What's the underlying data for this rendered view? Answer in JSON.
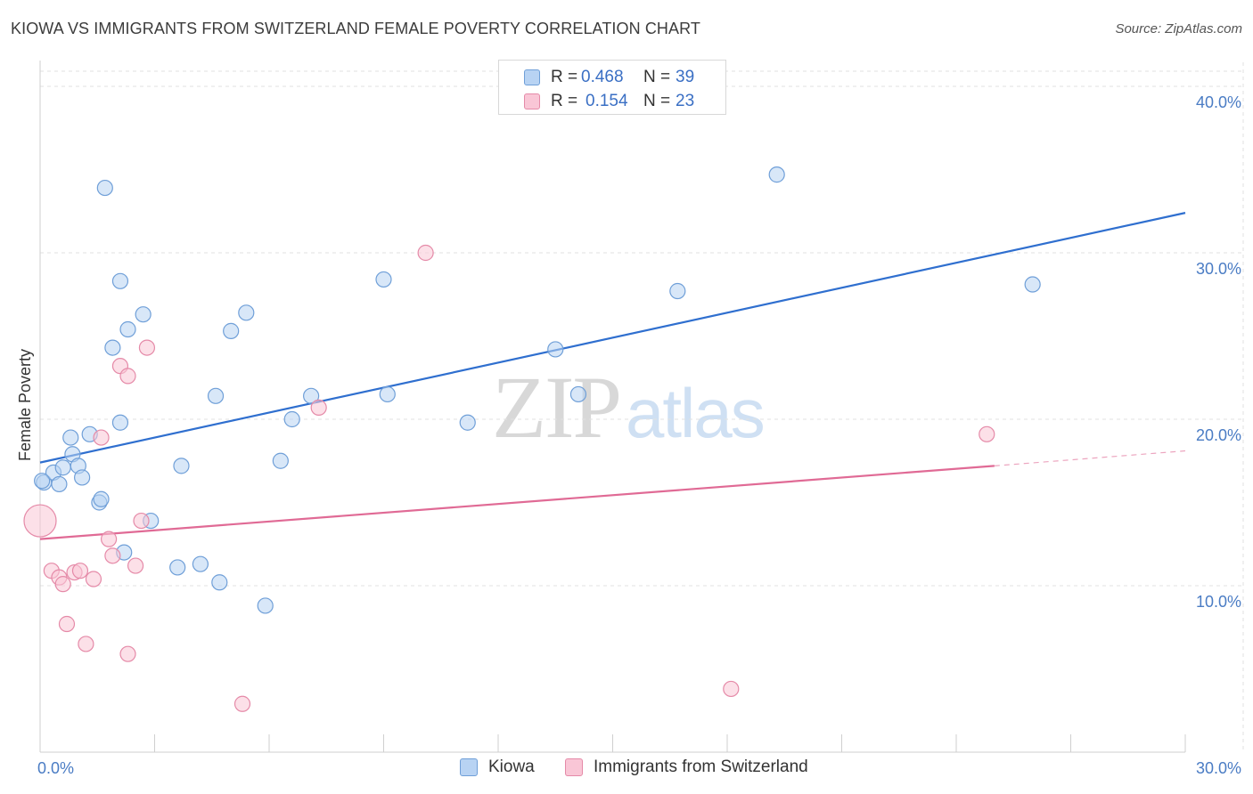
{
  "header": {
    "title": "KIOWA VS IMMIGRANTS FROM SWITZERLAND FEMALE POVERTY CORRELATION CHART",
    "source": "Source: ZipAtlas.com"
  },
  "watermark": {
    "zip": "ZIP",
    "atlas": "atlas"
  },
  "legend": {
    "rows": [
      {
        "r_label": "R =",
        "r_value": "0.468",
        "n_label": "N =",
        "n_value": "39"
      },
      {
        "r_label": "R =",
        "r_value": "0.154",
        "n_label": "N =",
        "n_value": "23"
      }
    ]
  },
  "bottom_legend": {
    "series1": "Kiowa",
    "series2": "Immigrants from Switzerland"
  },
  "colors": {
    "kiowa_fill": "#b8d3f3",
    "kiowa_stroke": "#6f9fd8",
    "kiowa_line": "#2f6fcf",
    "swiss_fill": "#f9c6d6",
    "swiss_stroke": "#e58aa8",
    "swiss_line": "#e06a95",
    "grid": "#e2e2e2",
    "tick_text": "#4a7cc4"
  },
  "chart_data": {
    "type": "scatter",
    "title": "KIOWA VS IMMIGRANTS FROM SWITZERLAND FEMALE POVERTY CORRELATION CHART",
    "ylabel": "Female Poverty",
    "xlabel": "",
    "xlim": [
      0,
      30
    ],
    "ylim": [
      0,
      40
    ],
    "x_tick_labels": [
      {
        "v": 0,
        "label": "0.0%"
      },
      {
        "v": 30,
        "label": "30.0%"
      }
    ],
    "y_tick_labels": [
      {
        "v": 10,
        "label": "10.0%"
      },
      {
        "v": 20,
        "label": "20.0%"
      },
      {
        "v": 30,
        "label": "30.0%"
      },
      {
        "v": 40,
        "label": "40.0%"
      }
    ],
    "grid": true,
    "legend_position": "top-center",
    "series": [
      {
        "name": "Kiowa",
        "r": 0.468,
        "n": 39,
        "trend": {
          "x": [
            0,
            30
          ],
          "y": [
            17.4,
            32.4
          ]
        },
        "points": [
          [
            0.1,
            16.2
          ],
          [
            0.35,
            16.8
          ],
          [
            0.5,
            16.1
          ],
          [
            0.6,
            17.1
          ],
          [
            0.8,
            18.9
          ],
          [
            0.85,
            17.9
          ],
          [
            1.0,
            17.2
          ],
          [
            1.1,
            16.5
          ],
          [
            1.3,
            19.1
          ],
          [
            1.55,
            15.0
          ],
          [
            1.6,
            15.2
          ],
          [
            1.7,
            33.9
          ],
          [
            1.9,
            24.3
          ],
          [
            2.1,
            28.3
          ],
          [
            2.1,
            19.8
          ],
          [
            2.2,
            12.0
          ],
          [
            2.3,
            25.4
          ],
          [
            2.7,
            26.3
          ],
          [
            2.9,
            13.9
          ],
          [
            3.6,
            11.1
          ],
          [
            3.7,
            17.2
          ],
          [
            4.2,
            11.3
          ],
          [
            4.6,
            21.4
          ],
          [
            4.7,
            10.2
          ],
          [
            5.0,
            25.3
          ],
          [
            5.4,
            26.4
          ],
          [
            5.9,
            8.8
          ],
          [
            6.3,
            17.5
          ],
          [
            6.6,
            20.0
          ],
          [
            7.1,
            21.4
          ],
          [
            9.0,
            28.4
          ],
          [
            9.1,
            21.5
          ],
          [
            11.2,
            19.8
          ],
          [
            13.5,
            24.2
          ],
          [
            14.1,
            21.5
          ],
          [
            16.7,
            27.7
          ],
          [
            19.3,
            34.7
          ],
          [
            26.0,
            28.1
          ],
          [
            0.05,
            16.3
          ]
        ]
      },
      {
        "name": "Immigrants from Switzerland",
        "r": 0.154,
        "n": 23,
        "trend": {
          "x": [
            0,
            25
          ],
          "y": [
            12.8,
            17.2
          ]
        },
        "trend_dashed": {
          "x": [
            25,
            30
          ],
          "y": [
            17.2,
            18.1
          ]
        },
        "points": [
          [
            0.0,
            13.9
          ],
          [
            0.3,
            10.9
          ],
          [
            0.5,
            10.5
          ],
          [
            0.6,
            10.1
          ],
          [
            0.7,
            7.7
          ],
          [
            0.9,
            10.8
          ],
          [
            1.05,
            10.9
          ],
          [
            1.2,
            6.5
          ],
          [
            1.4,
            10.4
          ],
          [
            1.6,
            18.9
          ],
          [
            1.8,
            12.8
          ],
          [
            1.9,
            11.8
          ],
          [
            2.1,
            23.2
          ],
          [
            2.3,
            5.9
          ],
          [
            2.3,
            22.6
          ],
          [
            2.5,
            11.2
          ],
          [
            2.65,
            13.9
          ],
          [
            2.8,
            24.3
          ],
          [
            5.3,
            2.9
          ],
          [
            7.3,
            20.7
          ],
          [
            10.1,
            30.0
          ],
          [
            18.1,
            3.8
          ],
          [
            24.8,
            19.1
          ]
        ]
      }
    ]
  }
}
